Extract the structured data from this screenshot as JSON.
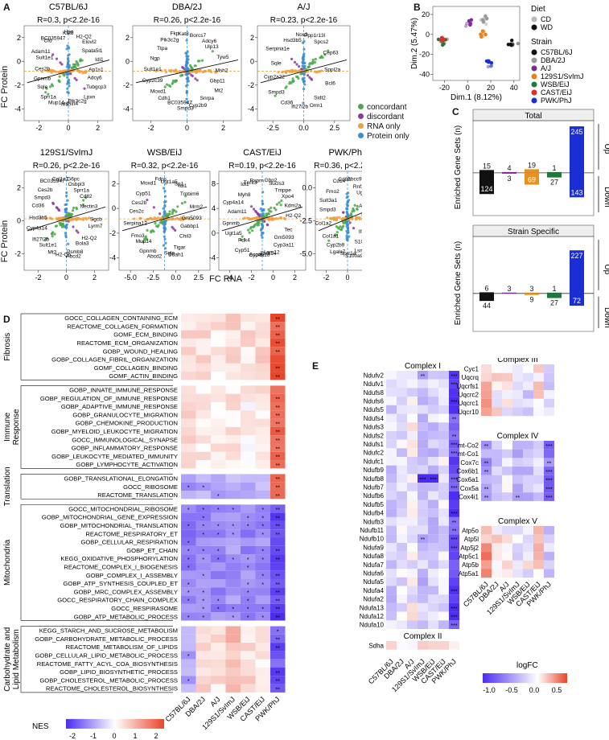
{
  "panels": {
    "A": "A",
    "B": "B",
    "C": "C",
    "D": "D",
    "E": "E"
  },
  "panelA": {
    "xlabel": "FC RNA",
    "ylabel": "FC Protein",
    "plots": [
      {
        "title": "C57BL/6J",
        "stat": "R=0.3, p<2.2e-16",
        "xticks": [
          "-2",
          "0",
          "2"
        ],
        "yticks": [
          "2",
          "0",
          "-2",
          "-4"
        ],
        "genes": [
          "Ap1s1",
          "Adcy6",
          "Tubgcp3",
          "Lpxn",
          "Pik3c2g",
          "Plin4",
          "Mt2",
          "Mup14",
          "Sprr1a",
          "Sqle",
          "Gpnmb",
          "Ces2b",
          "Sult1e1",
          "Adam11",
          "Cfd",
          "BC035947",
          "Kat8",
          "Hpn",
          "H2-Q2",
          "Elovl2",
          "Spata5l1",
          "Idi1"
        ]
      },
      {
        "title": "DBA/2J",
        "stat": "R=0.26, p<2.2e-16",
        "xticks": [
          "-2",
          "0",
          "2"
        ],
        "yticks": [
          "2",
          "0",
          "-2",
          "-4"
        ],
        "genes": [
          "Msh2",
          "Gbp11",
          "Mt2",
          "Snrpa",
          "Cyp2b9",
          "Smpd3",
          "BC035947",
          "Cdh1",
          "Moxd1",
          "Cyp2c39",
          "Sult1e1",
          "Ngp",
          "Ttpa",
          "Pik3c2g",
          "Fkp",
          "Kat8",
          "Borcs7",
          "Adcy6",
          "Ulp13",
          "Tyw5"
        ]
      },
      {
        "title": "A/J",
        "stat": "R=0.23, p<2.2e-16",
        "xticks": [
          "-2.5",
          "0.0",
          "2.5"
        ],
        "yticks": [
          "2",
          "0",
          "-2",
          "-4"
        ],
        "genes": [
          "Sppl2a",
          "Bcl6",
          "Sidt2",
          "Orm1",
          "Ifi27l2b",
          "Cd36",
          "Smpd3",
          "Cyp2a22",
          "Sqle",
          "Serpina1e",
          "Hsd3b5",
          "Nos3",
          "Ppp1r13l",
          "Spcs2",
          "Cep63"
        ]
      },
      {
        "title": "129S1/SvImJ",
        "stat": "R=0.26, p<2.2e-16",
        "xticks": [
          "-2",
          "0",
          "2"
        ],
        "yticks": [
          "2",
          "0",
          "-2"
        ],
        "genes": [
          "Sgcb",
          "Lyrm7",
          "H2-Q2",
          "Bola3",
          "Psmb8",
          "Abcd2",
          "H2-Q6",
          "Mt2",
          "Sult1e1",
          "Ifi27l2b",
          "Cyp4a14",
          "Hsd3b5",
          "Cd36",
          "Smpd3",
          "Ces2b",
          "BC035947",
          "Col1a1",
          "G6pc",
          "Osbpl3",
          "Sprr1a",
          "Cd82",
          "Nectin3"
        ]
      },
      {
        "title": "WSB/EiJ",
        "stat": "R=0.32, p<2.2e-16",
        "xticks": [
          "-5.0",
          "-2.5",
          "0.0",
          "2.5"
        ],
        "yticks": [
          "2",
          "0",
          "-2",
          "-4"
        ],
        "genes": [
          "Gm5093",
          "Gabbp1",
          "Chil3",
          "Tigar",
          "Ddah1",
          "Sqle",
          "Abcd2",
          "Gpnmb",
          "Mup14",
          "Fmo3",
          "Serpina12",
          "Ces2c",
          "Ces2b",
          "Cyp51",
          "Moxd1",
          "Fdps",
          "Ugt1a5",
          "Sp1",
          "Idi1",
          "Tmbim6",
          "Mrm2"
        ]
      },
      {
        "title": "CAST/EiJ",
        "stat": "R=0.19, p<2.2e-16",
        "xticks": [
          "-4",
          "-2",
          "0",
          "2"
        ],
        "yticks": [
          "8",
          "4",
          "0",
          "-4"
        ],
        "genes": [
          "H2-Q2",
          "Tec",
          "Gm5093",
          "Cyp3a11",
          "Lsm12",
          "Zbtb14",
          "Cyp4a10",
          "Acot3",
          "Cyp51",
          "Pdk4",
          "Ugt1a5",
          "Gpnmb",
          "Adam11",
          "Cyp4a14",
          "Myh8",
          "Idi1",
          "Tnnt3",
          "Rsprn",
          "Gbp2",
          "Sucls3",
          "Tmppe",
          "Xpo4",
          "Kdm2a"
        ]
      },
      {
        "title": "PWK/PhJ",
        "stat": "R=0.36, p<2.2e-16",
        "xticks": [
          "-2",
          "0",
          "2"
        ],
        "yticks": [
          "0.0",
          "-2.5",
          "-5.0"
        ],
        "genes": [
          "Rplp2",
          "Ifi20",
          "S100a8",
          "Lsm12",
          "S100a9",
          "Sprr1a",
          "Lgals7",
          "Cyp2b9",
          "Col1a1",
          "Col1a2",
          "Smpd3",
          "Sult3a1",
          "Fmo2",
          "Cd14",
          "Cd82",
          "Abcc9",
          "Rnf123",
          "Ugt1a10",
          "Ap1s1"
        ]
      }
    ],
    "legend": [
      {
        "label": "concordant",
        "color": "#4aa84a"
      },
      {
        "label": "discordant",
        "color": "#8a3c9e"
      },
      {
        "label": "RNA only",
        "color": "#f0a040"
      },
      {
        "label": "Protein only",
        "color": "#3b8ed0"
      }
    ]
  },
  "panelB": {
    "xlabel": "Dim.1 (8.12%)",
    "ylabel": "Dim.2 (5.47%)",
    "xticks": [
      "-20",
      "0",
      "20",
      "40"
    ],
    "yticks": [
      "20",
      "0",
      "-20",
      "-40"
    ],
    "diet_title": "Diet",
    "diet": [
      {
        "label": "CD",
        "color": "#bbbbbb"
      },
      {
        "label": "WD",
        "color": "#111111"
      }
    ],
    "strain_title": "Strain",
    "strains": [
      {
        "label": "C57BL/6J",
        "color": "#111111"
      },
      {
        "label": "DBA/2J",
        "color": "#9a9a9a"
      },
      {
        "label": "A/J",
        "color": "#7a2a9a"
      },
      {
        "label": "129S1/SvImJ",
        "color": "#e8821e"
      },
      {
        "label": "WSB/EiJ",
        "color": "#1e7a3a"
      },
      {
        "label": "CAST/EiJ",
        "color": "#d9302a"
      },
      {
        "label": "PWK/PhJ",
        "color": "#1a2ed6"
      }
    ]
  },
  "panelC": {
    "ylabel": "Enriched Gene Sets (n)",
    "up": "Up",
    "down": "Down",
    "charts": [
      {
        "title": "Total",
        "up": [
          15,
          4,
          19,
          1,
          245
        ],
        "down": [
          124,
          3,
          69,
          27,
          143
        ]
      },
      {
        "title": "Strain Specific",
        "up": [
          6,
          3,
          3,
          1,
          227
        ],
        "down": [
          44,
          0,
          9,
          27,
          72
        ]
      }
    ]
  },
  "panelD": {
    "legend_title": "NES",
    "legend_ticks": [
      "-2",
      "-1",
      "0",
      "1",
      "2"
    ],
    "columns": [
      "C57BL/6J",
      "DBA/2J",
      "A/J",
      "129S1/SvImJ",
      "WSB/EiJ",
      "CAST/EiJ",
      "PWK/PhJ"
    ],
    "groups": [
      {
        "name": "Fibrosis",
        "rows": [
          "GOCC_COLLAGEN_CONTAINING_ECM",
          "REACTOME_COLLAGEN_FORMATION",
          "GOMF_ECM_BINDING",
          "REACTOME_ECM_ORGANIZATION",
          "GOBP_WOUND_HEALING",
          "GOBP_COLLAGEN_FIBRIL_ORGANIZATION",
          "GOMF_COLLAGEN_BINDING",
          "GOMF_ACTIN_BINDING"
        ]
      },
      {
        "name": "Immune Response",
        "rows": [
          "GOBP_INNATE_IMMUNE_RESPONSE",
          "GOBP_REGULATION_OF_IMMUNE_RESPONSE",
          "GOBP_ADAPTIVE_IMMUNE_RESPONSE",
          "GOBP_GRANULOCYTE_MIGRATION",
          "GOBP_CHEMOKINE_PRODUCTION",
          "GOBP_MYELOID_LEUKOCYTE_MIGRATION",
          "GOCC_IMMUNOLOGICAL_SYNAPSE",
          "GOBP_INFLAMMATORY_RESPONSE",
          "GOBP_LEUKOCYTE_MEDIATED_IMMUNITY",
          "GOBP_LYMPHOCYTE_ACTIVATION"
        ]
      },
      {
        "name": "Translation",
        "rows": [
          "GOBP_TRANSLATIONAL_ELONGATION",
          "GOCC_RIBOSOME",
          "REACTOME_TRANSLATION"
        ]
      },
      {
        "name": "Mitochondria",
        "rows": [
          "GOCC_MITOCHONDRIAL_RIBOSOME",
          "GOBP_MITOCHONDRIAL_GENE_EXPRESSION",
          "GOBP_MITOCHONDRIAL_TRANSLATION",
          "REACTOME_RESPIRATORY_ET",
          "GOBP_CELLULAR_RESPIRATION",
          "GOBP_ET_CHAIN",
          "KEGG_OXIDATIVE_PHOSPHORYLATION",
          "REACTOME_COMPLEX_I_BIOGENESIS",
          "GOBP_COMPLEX_I_ASSEMBLY",
          "GOBP_ATP_SYNTHESIS_COUPLED_ET",
          "GOBP_MRC_COMPLEX_ASSEMBLY",
          "GOCC_RESPIRATORY_CHAIN_COMPLEX",
          "GOCC_RESPIRASOME",
          "GOBP_ATP_METABOLIC_PROCESS"
        ]
      },
      {
        "name": "Carbohydrate and Lipid Metabolism",
        "rows": [
          "KEGG_STARCH_AND_SUCROSE_METABOLISM",
          "GOBP_CARBOHYDRATE_METABOLIC_PROCESS",
          "REACTOME_METABOLISM_OF_LIPIDS",
          "GOBP_CELLULAR_LIPID_METABOLIC_PROCESS",
          "REACTOME_FATTY_ACYL_COA_BIOSYNTHESIS",
          "GOBP_LIPID_BIOSYNTHETIC_PROCESS",
          "GOBP_CHOLESTEROL_METABOLIC_PROCESS",
          "REACTOME_CHOLESTEROL_BIOSYNTHESIS"
        ]
      }
    ]
  },
  "panelE": {
    "legend_title": "logFC",
    "legend_ticks": [
      "-1.0",
      "-0.5",
      "0.0",
      "0.5"
    ],
    "columns": [
      "C57BL/6J",
      "DBA/2J",
      "A/J",
      "129S1/SvImJ",
      "WSB/EiJ",
      "CAST/EiJ",
      "PWK/PhJ"
    ],
    "complexes": [
      {
        "name": "Complex I",
        "rows": [
          "Ndufv2",
          "Ndufv1",
          "Ndufs8",
          "Ndufs6",
          "Ndufs5",
          "Ndufs4",
          "Ndufs3",
          "Ndufs2",
          "Ndufs1",
          "Ndufc2",
          "Ndufc1",
          "Ndufb9",
          "Ndufb8",
          "Ndufb7",
          "Ndufb6",
          "Ndufb5",
          "Ndufb4",
          "Ndufb3",
          "Ndufb11",
          "Ndufb10",
          "Ndufa9",
          "Ndufa8",
          "Ndufa7",
          "Ndufa6",
          "Ndufa5",
          "Ndufa4",
          "Ndufa2",
          "Ndufa13",
          "Ndufa12",
          "Ndufa10"
        ]
      },
      {
        "name": "Complex II",
        "rows": [
          "Sdha"
        ]
      },
      {
        "name": "Complex III",
        "rows": [
          "Cyc1",
          "Uqcrq",
          "Uqcrfs1",
          "Uqcrc2",
          "Uqcrc1",
          "Uqcr10"
        ]
      },
      {
        "name": "Complex IV",
        "rows": [
          "mt-Co2",
          "mt-Co1",
          "Cox7c",
          "Cox6b1",
          "Cox6a1",
          "Cox5a",
          "Cox4i1"
        ]
      },
      {
        "name": "Complex V",
        "rows": [
          "Atp5o",
          "Atp5l",
          "Atp5j2",
          "Atp5c1",
          "Atp5b",
          "Atp5a1"
        ]
      }
    ]
  }
}
